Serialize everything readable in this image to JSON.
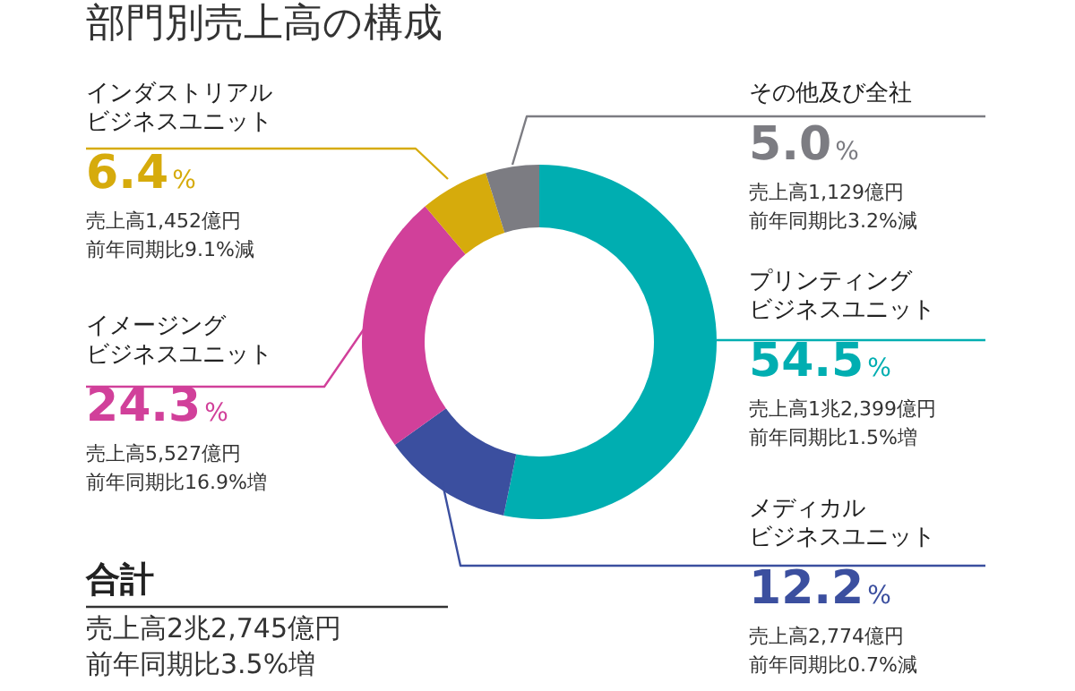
{
  "chart_data": {
    "type": "donut",
    "title": "部門別売上高の構成",
    "categories": [
      "プリンティングビジネスユニット",
      "メディカルビジネスユニット",
      "イメージングビジネスユニット",
      "インダストリアルビジネスユニット",
      "その他及び全社"
    ],
    "values": [
      54.5,
      12.2,
      24.3,
      6.4,
      5.0
    ],
    "colors": [
      "#00aeb1",
      "#3b4f9f",
      "#d1409a",
      "#d6ab0c",
      "#7c7c82"
    ],
    "value_labels": [
      "54.5%",
      "12.2%",
      "24.3%",
      "6.4%",
      "5.0%"
    ],
    "annotations": [
      "売上高1兆2,399億円",
      "前年同期比1.5%増",
      "売上高2,774億円",
      "前年同期比0.7%減",
      "売上高5,527億円",
      "前年同期比16.9%増",
      "売上高1,452億円",
      "前年同期比9.1%減",
      "売上高1,129億円",
      "前年同期比3.2%減",
      "合計",
      "売上高2兆2,745億円",
      "前年同期比3.5%増"
    ],
    "legend": false
  }
}
